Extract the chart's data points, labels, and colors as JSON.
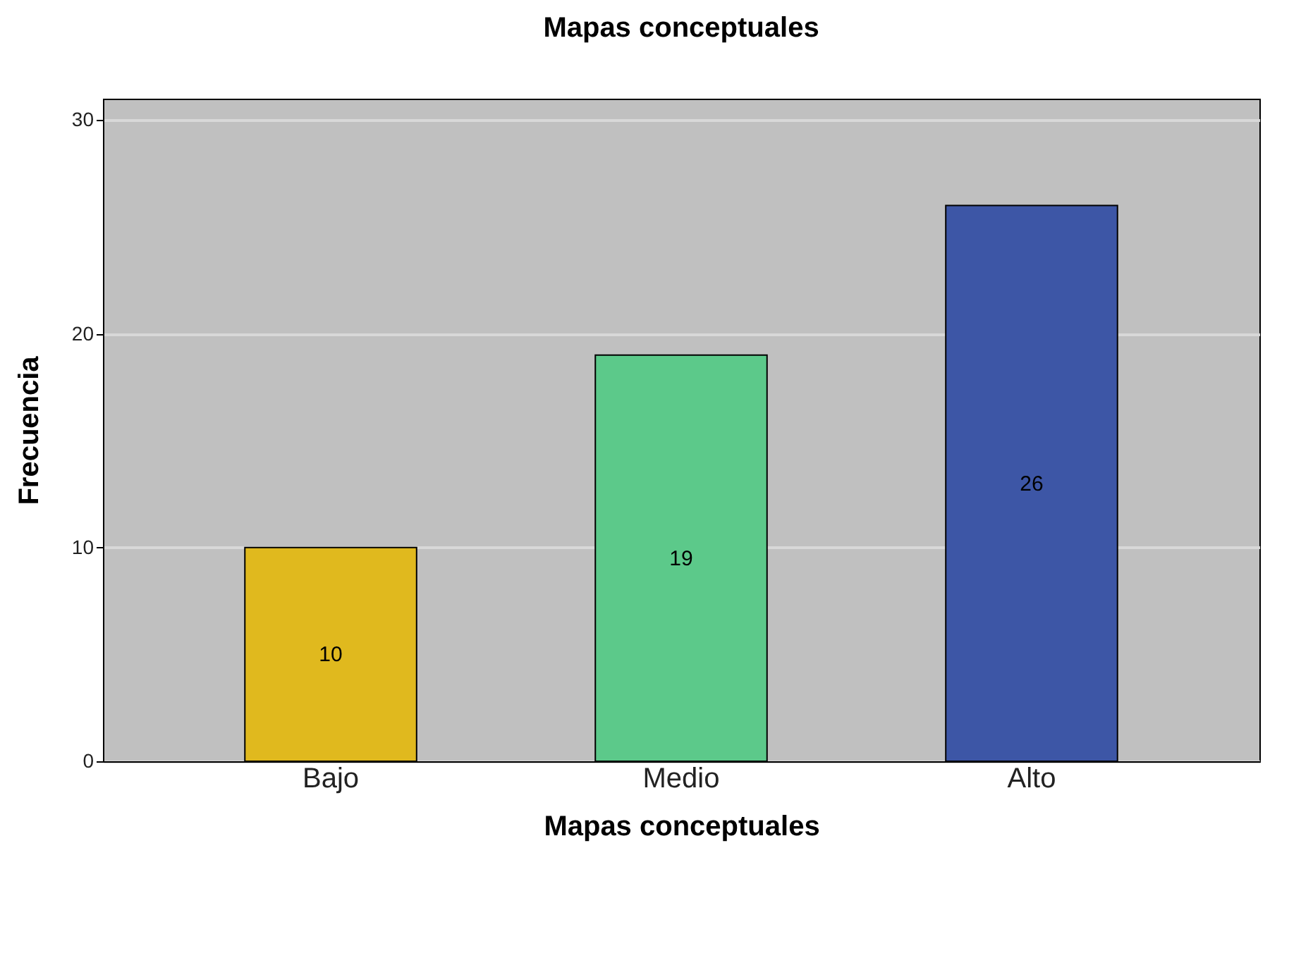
{
  "chart_data": {
    "type": "bar",
    "title": "Mapas conceptuales",
    "xlabel": "Mapas conceptuales",
    "ylabel": "Frecuencia",
    "categories": [
      "Bajo",
      "Medio",
      "Alto"
    ],
    "values": [
      10,
      19,
      26
    ],
    "colors": [
      "#e0b91e",
      "#5cc98a",
      "#3d56a6"
    ],
    "ylim": [
      0,
      31
    ],
    "yticks": [
      0,
      10,
      20,
      30
    ],
    "grid": "y",
    "data_labels": true
  }
}
